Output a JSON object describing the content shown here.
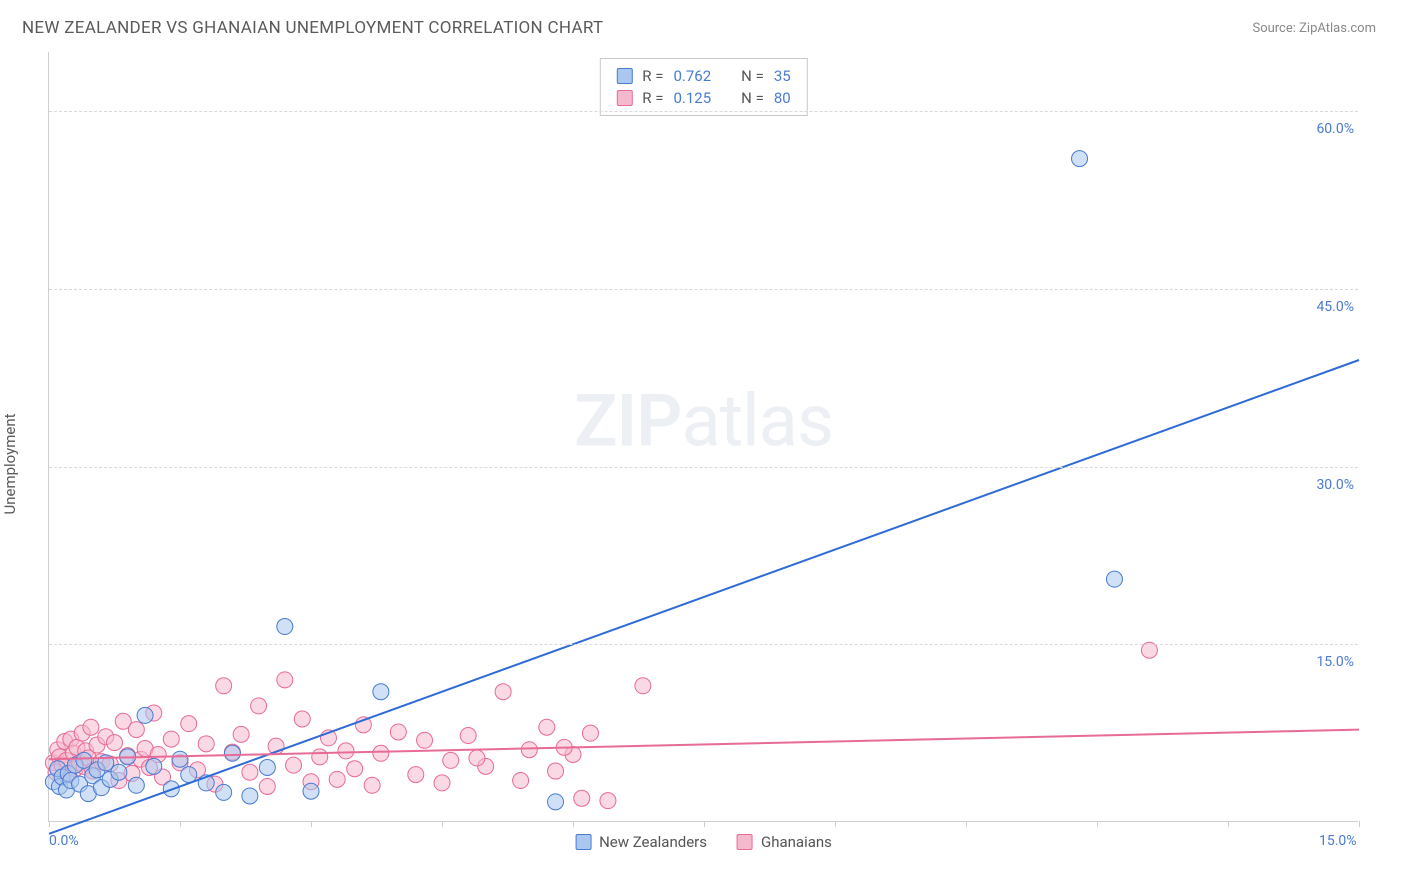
{
  "title": "NEW ZEALANDER VS GHANAIAN UNEMPLOYMENT CORRELATION CHART",
  "source": "Source: ZipAtlas.com",
  "y_axis_title": "Unemployment",
  "watermark_bold": "ZIP",
  "watermark_light": "atlas",
  "chart": {
    "type": "scatter",
    "background_color": "#ffffff",
    "grid_color": "#d9d9d9",
    "axis_color": "#cfcfcf",
    "text_color": "#5a5a5a",
    "tick_label_color": "#4a7bd0",
    "xlim": [
      0,
      15
    ],
    "ylim": [
      0,
      65
    ],
    "x_ticks": [
      0,
      1.5,
      3.0,
      4.5,
      6.0,
      7.5,
      9.0,
      10.5,
      12.0,
      13.5,
      15.0
    ],
    "x_tick_labels": {
      "0": "0.0%",
      "15": "15.0%"
    },
    "y_gridlines": [
      15,
      30,
      45,
      60
    ],
    "y_tick_labels": {
      "15": "15.0%",
      "30": "30.0%",
      "45": "45.0%",
      "60": "60.0%"
    },
    "marker_radius": 8,
    "marker_opacity": 0.55,
    "line_width": 2,
    "series": [
      {
        "name": "New Zealanders",
        "fill_color": "#a9c7ef",
        "stroke_color": "#4a7bd0",
        "line_color": "#2f6bd6",
        "correlation_R": "0.762",
        "correlation_N": "35",
        "trend_line": {
          "x1": 0,
          "y1": -1.0,
          "x2": 15,
          "y2": 39.0
        },
        "points": [
          [
            0.05,
            3.4
          ],
          [
            0.1,
            4.5
          ],
          [
            0.12,
            3.0
          ],
          [
            0.15,
            3.8
          ],
          [
            0.2,
            2.7
          ],
          [
            0.22,
            4.1
          ],
          [
            0.25,
            3.5
          ],
          [
            0.3,
            4.8
          ],
          [
            0.35,
            3.2
          ],
          [
            0.4,
            5.2
          ],
          [
            0.45,
            2.4
          ],
          [
            0.5,
            3.9
          ],
          [
            0.55,
            4.4
          ],
          [
            0.6,
            2.9
          ],
          [
            0.65,
            5.0
          ],
          [
            0.7,
            3.6
          ],
          [
            0.8,
            4.2
          ],
          [
            0.9,
            5.5
          ],
          [
            1.0,
            3.1
          ],
          [
            1.1,
            9.0
          ],
          [
            1.2,
            4.7
          ],
          [
            1.4,
            2.8
          ],
          [
            1.5,
            5.3
          ],
          [
            1.6,
            4.0
          ],
          [
            1.8,
            3.3
          ],
          [
            2.0,
            2.5
          ],
          [
            2.1,
            5.8
          ],
          [
            2.3,
            2.2
          ],
          [
            2.5,
            4.6
          ],
          [
            2.7,
            16.5
          ],
          [
            3.0,
            2.6
          ],
          [
            3.8,
            11.0
          ],
          [
            5.8,
            1.7
          ],
          [
            12.2,
            20.5
          ],
          [
            11.8,
            56.0
          ]
        ]
      },
      {
        "name": "Ghanaians",
        "fill_color": "#f5b9ce",
        "stroke_color": "#e86a97",
        "line_color": "#e86a97",
        "correlation_R": "0.125",
        "correlation_N": "80",
        "trend_line": {
          "x1": 0,
          "y1": 5.3,
          "x2": 15,
          "y2": 7.8
        },
        "points": [
          [
            0.05,
            5.0
          ],
          [
            0.08,
            4.2
          ],
          [
            0.1,
            6.1
          ],
          [
            0.12,
            5.5
          ],
          [
            0.15,
            4.8
          ],
          [
            0.18,
            6.8
          ],
          [
            0.2,
            5.2
          ],
          [
            0.22,
            4.0
          ],
          [
            0.25,
            7.0
          ],
          [
            0.28,
            5.8
          ],
          [
            0.3,
            4.5
          ],
          [
            0.32,
            6.3
          ],
          [
            0.35,
            5.0
          ],
          [
            0.38,
            7.5
          ],
          [
            0.4,
            4.7
          ],
          [
            0.42,
            6.0
          ],
          [
            0.45,
            5.4
          ],
          [
            0.48,
            8.0
          ],
          [
            0.5,
            4.3
          ],
          [
            0.55,
            6.5
          ],
          [
            0.6,
            5.1
          ],
          [
            0.65,
            7.2
          ],
          [
            0.7,
            4.9
          ],
          [
            0.75,
            6.7
          ],
          [
            0.8,
            3.5
          ],
          [
            0.85,
            8.5
          ],
          [
            0.9,
            5.6
          ],
          [
            0.95,
            4.1
          ],
          [
            1.0,
            7.8
          ],
          [
            1.05,
            5.3
          ],
          [
            1.1,
            6.2
          ],
          [
            1.15,
            4.6
          ],
          [
            1.2,
            9.2
          ],
          [
            1.25,
            5.7
          ],
          [
            1.3,
            3.8
          ],
          [
            1.4,
            7.0
          ],
          [
            1.5,
            5.0
          ],
          [
            1.6,
            8.3
          ],
          [
            1.7,
            4.4
          ],
          [
            1.8,
            6.6
          ],
          [
            1.9,
            3.2
          ],
          [
            2.0,
            11.5
          ],
          [
            2.1,
            5.9
          ],
          [
            2.2,
            7.4
          ],
          [
            2.3,
            4.2
          ],
          [
            2.4,
            9.8
          ],
          [
            2.5,
            3.0
          ],
          [
            2.6,
            6.4
          ],
          [
            2.7,
            12.0
          ],
          [
            2.8,
            4.8
          ],
          [
            2.9,
            8.7
          ],
          [
            3.0,
            3.4
          ],
          [
            3.1,
            5.5
          ],
          [
            3.2,
            7.1
          ],
          [
            3.3,
            3.6
          ],
          [
            3.4,
            6.0
          ],
          [
            3.5,
            4.5
          ],
          [
            3.6,
            8.2
          ],
          [
            3.7,
            3.1
          ],
          [
            3.8,
            5.8
          ],
          [
            4.0,
            7.6
          ],
          [
            4.2,
            4.0
          ],
          [
            4.3,
            6.9
          ],
          [
            4.5,
            3.3
          ],
          [
            4.6,
            5.2
          ],
          [
            4.8,
            7.3
          ],
          [
            5.0,
            4.7
          ],
          [
            5.2,
            11.0
          ],
          [
            5.4,
            3.5
          ],
          [
            5.5,
            6.1
          ],
          [
            5.7,
            8.0
          ],
          [
            5.8,
            4.3
          ],
          [
            6.0,
            5.7
          ],
          [
            6.1,
            2.0
          ],
          [
            6.2,
            7.5
          ],
          [
            6.4,
            1.8
          ],
          [
            6.8,
            11.5
          ],
          [
            12.6,
            14.5
          ],
          [
            5.9,
            6.3
          ],
          [
            4.9,
            5.4
          ]
        ]
      }
    ]
  },
  "legend": {
    "r_label": "R =",
    "n_label": "N ="
  }
}
